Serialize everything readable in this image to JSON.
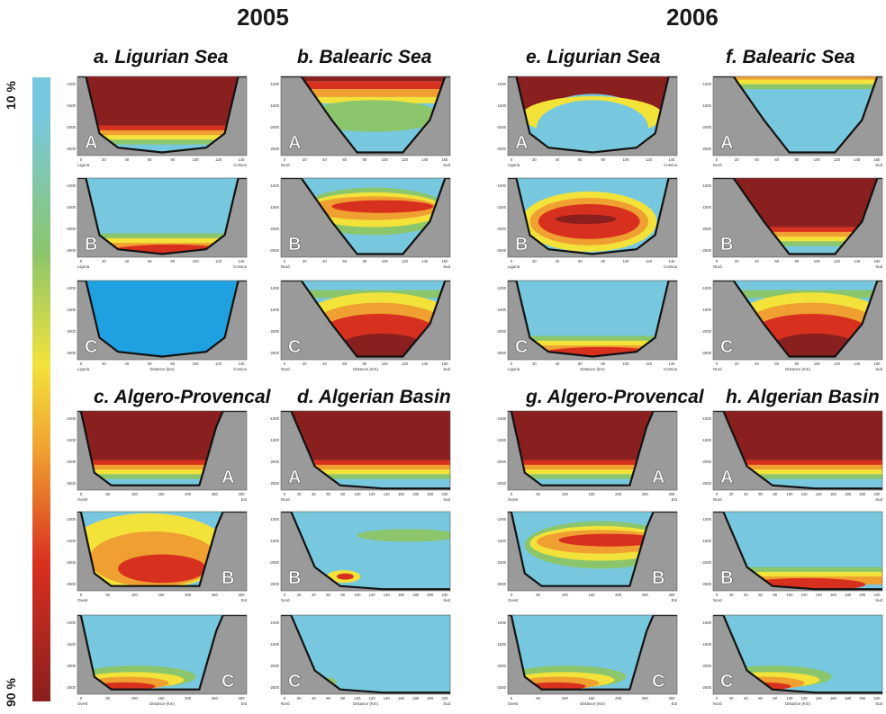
{
  "header": {
    "year_left": "2005",
    "year_right": "2006"
  },
  "scale": {
    "top": "10 %",
    "bottom": "90 %"
  },
  "colors": {
    "cyan": "#77c8df",
    "green": "#8bc56c",
    "yellow": "#f2e23a",
    "orange": "#f0a030",
    "red": "#d8301f",
    "dark_red": "#8a1f1f",
    "rock": "#9a9a9a",
    "deep_blue": "#1fa0e0"
  },
  "panels": [
    {
      "id": "a",
      "title": "a. Ligurian Sea",
      "transect": "ligurian"
    },
    {
      "id": "b",
      "title": "b. Balearic Sea",
      "transect": "balearic"
    },
    {
      "id": "c",
      "title": "c. Algero-Provencal",
      "transect": "algero"
    },
    {
      "id": "d",
      "title": "d. Algerian Basin",
      "transect": "algerian"
    },
    {
      "id": "e",
      "title": "e. Ligurian Sea",
      "transect": "ligurian"
    },
    {
      "id": "f",
      "title": "f. Balearic Sea",
      "transect": "balearic"
    },
    {
      "id": "g",
      "title": "g. Algero-Provencal",
      "transect": "algero"
    },
    {
      "id": "h",
      "title": "h. Algerian Basin",
      "transect": "algerian"
    }
  ],
  "transects": {
    "ligurian": {
      "left": "Liguria",
      "right": "Corsica",
      "xlabel": "Distance (km)",
      "ticks": [
        "0",
        "20",
        "40",
        "60",
        "80",
        "100",
        "120",
        "140"
      ]
    },
    "balearic": {
      "left": "Nord",
      "right": "Sud",
      "xlabel": "Distance (Km)",
      "ticks": [
        "0",
        "20",
        "40",
        "60",
        "80",
        "100",
        "120",
        "140",
        "160"
      ]
    },
    "algero": {
      "left": "Ovest",
      "right": "Est",
      "xlabel": "Distance (Km)",
      "ticks": [
        "0",
        "50",
        "100",
        "150",
        "200",
        "250",
        "300"
      ]
    },
    "algerian": {
      "left": "Nord",
      "right": "Sud",
      "xlabel": "Distance (Km)",
      "ticks": [
        "0",
        "20",
        "40",
        "60",
        "80",
        "100",
        "120",
        "140",
        "160",
        "180",
        "200",
        "220"
      ]
    }
  },
  "depth_ticks": [
    "-1000",
    "-1500",
    "-2000",
    "-2500"
  ],
  "row_letters": [
    "A",
    "B",
    "C"
  ],
  "chart_data": {
    "type": "heatmap",
    "colorbar": {
      "min_label": "10 %",
      "max_label": "90 %"
    },
    "series": [
      {
        "panel": "a",
        "row": "A",
        "pattern": "upper-high"
      },
      {
        "panel": "a",
        "row": "B",
        "pattern": "bottom-band"
      },
      {
        "panel": "a",
        "row": "C",
        "pattern": "uniform-deep"
      },
      {
        "panel": "b",
        "row": "A",
        "pattern": "top-band"
      },
      {
        "panel": "b",
        "row": "B",
        "pattern": "mid-band"
      },
      {
        "panel": "b",
        "row": "C",
        "pattern": "bowl"
      },
      {
        "panel": "c",
        "row": "A",
        "pattern": "upper-high"
      },
      {
        "panel": "c",
        "row": "B",
        "pattern": "broad-warm"
      },
      {
        "panel": "c",
        "row": "C",
        "pattern": "bottom-wedge"
      },
      {
        "panel": "d",
        "row": "A",
        "pattern": "upper-high"
      },
      {
        "panel": "d",
        "row": "B",
        "pattern": "blob-left"
      },
      {
        "panel": "d",
        "row": "C",
        "pattern": "low"
      },
      {
        "panel": "e",
        "row": "A",
        "pattern": "dome"
      },
      {
        "panel": "e",
        "row": "B",
        "pattern": "lens"
      },
      {
        "panel": "e",
        "row": "C",
        "pattern": "bottom-band"
      },
      {
        "panel": "f",
        "row": "A",
        "pattern": "top-thin"
      },
      {
        "panel": "f",
        "row": "B",
        "pattern": "upper-high"
      },
      {
        "panel": "f",
        "row": "C",
        "pattern": "bowl"
      },
      {
        "panel": "g",
        "row": "A",
        "pattern": "upper-high"
      },
      {
        "panel": "g",
        "row": "B",
        "pattern": "mid-band"
      },
      {
        "panel": "g",
        "row": "C",
        "pattern": "bottom-wedge"
      },
      {
        "panel": "h",
        "row": "A",
        "pattern": "upper-high"
      },
      {
        "panel": "h",
        "row": "B",
        "pattern": "bottom-band"
      },
      {
        "panel": "h",
        "row": "C",
        "pattern": "bottom-wedge"
      }
    ]
  }
}
